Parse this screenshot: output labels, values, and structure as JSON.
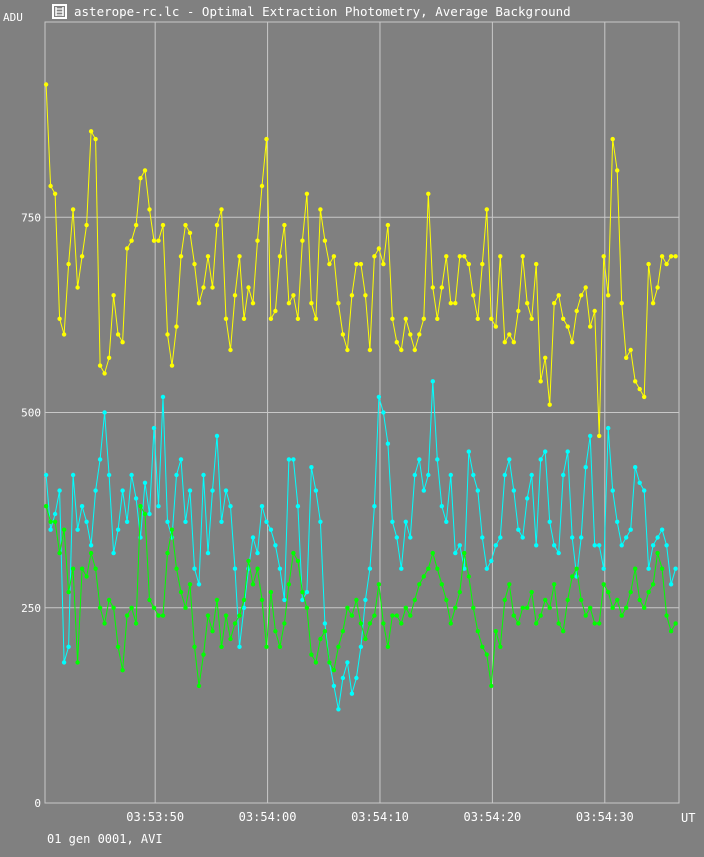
{
  "window": {
    "title": "asterope-rc.lc - Optimal Extraction Photometry, Average Background",
    "icon": "ladder-icon"
  },
  "footer": {
    "status": "01 gen 0001, AVI"
  },
  "colors": {
    "background": "#808080",
    "grid": "#c8c8c8",
    "series_1": "#ffff00",
    "series_2": "#00ffff",
    "series_3": "#00ff00"
  },
  "chart_data": {
    "type": "line",
    "title": "asterope-rc.lc - Optimal Extraction Photometry, Average Background",
    "xlabel": "UT",
    "ylabel": "ADU",
    "xlim": [
      "03:53:40.2",
      "03:54:36.6"
    ],
    "ylim": [
      0,
      1000
    ],
    "yticks": [
      0,
      250,
      500,
      750
    ],
    "ytick_labels": [
      "0",
      "250",
      "500",
      "750"
    ],
    "xticks": [
      "03:53:50",
      "03:54:00",
      "03:54:10",
      "03:54:20",
      "03:54:30"
    ],
    "grid": true,
    "series": [
      {
        "color": "#ffff00",
        "x": [
          "03:53:40.3",
          "03:53:40.7",
          "03:53:41.1",
          "03:53:41.5",
          "03:53:41.9",
          "03:53:42.3",
          "03:53:42.7",
          "03:53:43.1",
          "03:53:43.5",
          "03:53:43.9",
          "03:53:44.3",
          "03:53:44.7",
          "03:53:45.1",
          "03:53:45.5",
          "03:53:45.9",
          "03:53:46.3",
          "03:53:46.7",
          "03:53:47.1",
          "03:53:47.5",
          "03:53:47.9",
          "03:53:48.3",
          "03:53:48.7",
          "03:53:49.1",
          "03:53:49.5",
          "03:53:49.9",
          "03:53:50.3",
          "03:53:50.7",
          "03:53:51.1",
          "03:53:51.5",
          "03:53:51.9",
          "03:53:52.3",
          "03:53:52.7",
          "03:53:53.1",
          "03:53:53.5",
          "03:53:53.9",
          "03:53:54.3",
          "03:53:54.7",
          "03:53:55.1",
          "03:53:55.5",
          "03:53:55.9",
          "03:53:56.3",
          "03:53:56.7",
          "03:53:57.1",
          "03:53:57.5",
          "03:53:57.9",
          "03:53:58.3",
          "03:53:58.7",
          "03:53:59.1",
          "03:53:59.5",
          "03:53:59.9",
          "03:54:00.3",
          "03:54:00.7",
          "03:54:01.1",
          "03:54:01.5",
          "03:54:01.9",
          "03:54:02.3",
          "03:54:02.7",
          "03:54:03.1",
          "03:54:03.5",
          "03:54:03.9",
          "03:54:04.3",
          "03:54:04.7",
          "03:54:05.1",
          "03:54:05.5",
          "03:54:05.9",
          "03:54:06.3",
          "03:54:06.7",
          "03:54:07.1",
          "03:54:07.5",
          "03:54:07.9",
          "03:54:08.3",
          "03:54:08.7",
          "03:54:09.1",
          "03:54:09.5",
          "03:54:09.9",
          "03:54:10.3",
          "03:54:10.7",
          "03:54:11.1",
          "03:54:11.5",
          "03:54:11.9",
          "03:54:12.3",
          "03:54:12.7",
          "03:54:13.1",
          "03:54:13.5",
          "03:54:13.9",
          "03:54:14.3",
          "03:54:14.7",
          "03:54:15.1",
          "03:54:15.5",
          "03:54:15.9",
          "03:54:16.3",
          "03:54:16.7",
          "03:54:17.1",
          "03:54:17.5",
          "03:54:17.9",
          "03:54:18.3",
          "03:54:18.7",
          "03:54:19.1",
          "03:54:19.5",
          "03:54:19.9",
          "03:54:20.3",
          "03:54:20.7",
          "03:54:21.1",
          "03:54:21.5",
          "03:54:21.9",
          "03:54:22.3",
          "03:54:22.7",
          "03:54:23.1",
          "03:54:23.5",
          "03:54:23.9",
          "03:54:24.3",
          "03:54:24.7",
          "03:54:25.1",
          "03:54:25.5",
          "03:54:25.9",
          "03:54:26.3",
          "03:54:26.7",
          "03:54:27.1",
          "03:54:27.5",
          "03:54:27.9",
          "03:54:28.3",
          "03:54:28.7",
          "03:54:29.1",
          "03:54:29.5",
          "03:54:29.9",
          "03:54:30.3",
          "03:54:30.7",
          "03:54:31.1",
          "03:54:31.5",
          "03:54:31.9",
          "03:54:32.3",
          "03:54:32.7",
          "03:54:33.1",
          "03:54:33.5",
          "03:54:33.9",
          "03:54:34.3",
          "03:54:34.7",
          "03:54:35.1",
          "03:54:35.5",
          "03:54:35.9",
          "03:54:36.3"
        ],
        "values": [
          920,
          790,
          780,
          620,
          600,
          690,
          760,
          660,
          700,
          740,
          860,
          850,
          560,
          550,
          570,
          650,
          600,
          590,
          710,
          720,
          740,
          800,
          810,
          760,
          720,
          720,
          740,
          600,
          560,
          610,
          700,
          740,
          730,
          690,
          640,
          660,
          700,
          660,
          740,
          760,
          620,
          580,
          650,
          700,
          620,
          660,
          640,
          720,
          790,
          850,
          620,
          630,
          700,
          740,
          640,
          650,
          620,
          720,
          780,
          640,
          620,
          760,
          720,
          690,
          700,
          640,
          600,
          580,
          650,
          690,
          690,
          650,
          580,
          700,
          710,
          690,
          740,
          620,
          590,
          580,
          620,
          600,
          580,
          600,
          620,
          780,
          660,
          620,
          660,
          700,
          640,
          640,
          700,
          700,
          690,
          650,
          620,
          690,
          760,
          620,
          610,
          700,
          590,
          600,
          590,
          630,
          700,
          640,
          620,
          690,
          540,
          570,
          510,
          640,
          650,
          620,
          610,
          590,
          630,
          650,
          660,
          610,
          630,
          470,
          700,
          650,
          850,
          810,
          640,
          570,
          580,
          540,
          530,
          520,
          690,
          640,
          660,
          700,
          690,
          700,
          700
        ]
      },
      {
        "color": "#00ffff",
        "x": [
          "03:53:40.3",
          "03:53:40.7",
          "03:53:41.1",
          "03:53:41.5",
          "03:53:41.9",
          "03:53:42.3",
          "03:53:42.7",
          "03:53:43.1",
          "03:53:43.5",
          "03:53:43.9",
          "03:53:44.3",
          "03:53:44.7",
          "03:53:45.1",
          "03:53:45.5",
          "03:53:45.9",
          "03:53:46.3",
          "03:53:46.7",
          "03:53:47.1",
          "03:53:47.5",
          "03:53:47.9",
          "03:53:48.3",
          "03:53:48.7",
          "03:53:49.1",
          "03:53:49.5",
          "03:53:49.9",
          "03:53:50.3",
          "03:53:50.7",
          "03:53:51.1",
          "03:53:51.5",
          "03:53:51.9",
          "03:53:52.3",
          "03:53:52.7",
          "03:53:53.1",
          "03:53:53.5",
          "03:53:53.9",
          "03:53:54.3",
          "03:53:54.7",
          "03:53:55.1",
          "03:53:55.5",
          "03:53:55.9",
          "03:53:56.3",
          "03:53:56.7",
          "03:53:57.1",
          "03:53:57.5",
          "03:53:57.9",
          "03:53:58.3",
          "03:53:58.7",
          "03:53:59.1",
          "03:53:59.5",
          "03:53:59.9",
          "03:54:00.3",
          "03:54:00.7",
          "03:54:01.1",
          "03:54:01.5",
          "03:54:01.9",
          "03:54:02.3",
          "03:54:02.7",
          "03:54:03.1",
          "03:54:03.5",
          "03:54:03.9",
          "03:54:04.3",
          "03:54:04.7",
          "03:54:05.1",
          "03:54:05.5",
          "03:54:05.9",
          "03:54:06.3",
          "03:54:06.7",
          "03:54:07.1",
          "03:54:07.5",
          "03:54:07.9",
          "03:54:08.3",
          "03:54:08.7",
          "03:54:09.1",
          "03:54:09.5",
          "03:54:09.9",
          "03:54:10.3",
          "03:54:10.7",
          "03:54:11.1",
          "03:54:11.5",
          "03:54:11.9",
          "03:54:12.3",
          "03:54:12.7",
          "03:54:13.1",
          "03:54:13.5",
          "03:54:13.9",
          "03:54:14.3",
          "03:54:14.7",
          "03:54:15.1",
          "03:54:15.5",
          "03:54:15.9",
          "03:54:16.3",
          "03:54:16.7",
          "03:54:17.1",
          "03:54:17.5",
          "03:54:17.9",
          "03:54:18.3",
          "03:54:18.7",
          "03:54:19.1",
          "03:54:19.5",
          "03:54:19.9",
          "03:54:20.3",
          "03:54:20.7",
          "03:54:21.1",
          "03:54:21.5",
          "03:54:21.9",
          "03:54:22.3",
          "03:54:22.7",
          "03:54:23.1",
          "03:54:23.5",
          "03:54:23.9",
          "03:54:24.3",
          "03:54:24.7",
          "03:54:25.1",
          "03:54:25.5",
          "03:54:25.9",
          "03:54:26.3",
          "03:54:26.7",
          "03:54:27.1",
          "03:54:27.5",
          "03:54:27.9",
          "03:54:28.3",
          "03:54:28.7",
          "03:54:29.1",
          "03:54:29.5",
          "03:54:29.9",
          "03:54:30.3",
          "03:54:30.7",
          "03:54:31.1",
          "03:54:31.5",
          "03:54:31.9",
          "03:54:32.3",
          "03:54:32.7",
          "03:54:33.1",
          "03:54:33.5",
          "03:54:33.9",
          "03:54:34.3",
          "03:54:34.7",
          "03:54:35.1",
          "03:54:35.5",
          "03:54:35.9",
          "03:54:36.3"
        ],
        "values": [
          420,
          350,
          370,
          400,
          180,
          200,
          420,
          350,
          380,
          360,
          330,
          400,
          440,
          500,
          420,
          320,
          350,
          400,
          360,
          420,
          390,
          340,
          410,
          370,
          480,
          380,
          520,
          360,
          340,
          420,
          440,
          360,
          400,
          300,
          280,
          420,
          320,
          400,
          470,
          360,
          400,
          380,
          300,
          200,
          250,
          300,
          340,
          320,
          380,
          360,
          350,
          330,
          300,
          260,
          440,
          440,
          380,
          260,
          270,
          430,
          400,
          360,
          230,
          180,
          150,
          120,
          160,
          180,
          140,
          160,
          200,
          260,
          300,
          380,
          520,
          500,
          460,
          360,
          340,
          300,
          360,
          340,
          420,
          440,
          400,
          420,
          540,
          440,
          380,
          360,
          420,
          320,
          330,
          300,
          450,
          420,
          400,
          340,
          300,
          310,
          330,
          340,
          420,
          440,
          400,
          350,
          340,
          390,
          420,
          330,
          440,
          450,
          360,
          330,
          320,
          420,
          450,
          340,
          290,
          340,
          430,
          470,
          330,
          330,
          300,
          480,
          400,
          360,
          330,
          340,
          350,
          430,
          410,
          400,
          300,
          330,
          340,
          350,
          330,
          280,
          300
        ]
      },
      {
        "color": "#00ff00",
        "x": [
          "03:53:40.3",
          "03:53:40.7",
          "03:53:41.1",
          "03:53:41.5",
          "03:53:41.9",
          "03:53:42.3",
          "03:53:42.7",
          "03:53:43.1",
          "03:53:43.5",
          "03:53:43.9",
          "03:53:44.3",
          "03:53:44.7",
          "03:53:45.1",
          "03:53:45.5",
          "03:53:45.9",
          "03:53:46.3",
          "03:53:46.7",
          "03:53:47.1",
          "03:53:47.5",
          "03:53:47.9",
          "03:53:48.3",
          "03:53:48.7",
          "03:53:49.1",
          "03:53:49.5",
          "03:53:49.9",
          "03:53:50.3",
          "03:53:50.7",
          "03:53:51.1",
          "03:53:51.5",
          "03:53:51.9",
          "03:53:52.3",
          "03:53:52.7",
          "03:53:53.1",
          "03:53:53.5",
          "03:53:53.9",
          "03:53:54.3",
          "03:53:54.7",
          "03:53:55.1",
          "03:53:55.5",
          "03:53:55.9",
          "03:53:56.3",
          "03:53:56.7",
          "03:53:57.1",
          "03:53:57.5",
          "03:53:57.9",
          "03:53:58.3",
          "03:53:58.7",
          "03:53:59.1",
          "03:53:59.5",
          "03:53:59.9",
          "03:54:00.3",
          "03:54:00.7",
          "03:54:01.1",
          "03:54:01.5",
          "03:54:01.9",
          "03:54:02.3",
          "03:54:02.7",
          "03:54:03.1",
          "03:54:03.5",
          "03:54:03.9",
          "03:54:04.3",
          "03:54:04.7",
          "03:54:05.1",
          "03:54:05.5",
          "03:54:05.9",
          "03:54:06.3",
          "03:54:06.7",
          "03:54:07.1",
          "03:54:07.5",
          "03:54:07.9",
          "03:54:08.3",
          "03:54:08.7",
          "03:54:09.1",
          "03:54:09.5",
          "03:54:09.9",
          "03:54:10.3",
          "03:54:10.7",
          "03:54:11.1",
          "03:54:11.5",
          "03:54:11.9",
          "03:54:12.3",
          "03:54:12.7",
          "03:54:13.1",
          "03:54:13.5",
          "03:54:13.9",
          "03:54:14.3",
          "03:54:14.7",
          "03:54:15.1",
          "03:54:15.5",
          "03:54:15.9",
          "03:54:16.3",
          "03:54:16.7",
          "03:54:17.1",
          "03:54:17.5",
          "03:54:17.9",
          "03:54:18.3",
          "03:54:18.7",
          "03:54:19.1",
          "03:54:19.5",
          "03:54:19.9",
          "03:54:20.3",
          "03:54:20.7",
          "03:54:21.1",
          "03:54:21.5",
          "03:54:21.9",
          "03:54:22.3",
          "03:54:22.7",
          "03:54:23.1",
          "03:54:23.5",
          "03:54:23.9",
          "03:54:24.3",
          "03:54:24.7",
          "03:54:25.1",
          "03:54:25.5",
          "03:54:25.9",
          "03:54:26.3",
          "03:54:26.7",
          "03:54:27.1",
          "03:54:27.5",
          "03:54:27.9",
          "03:54:28.3",
          "03:54:28.7",
          "03:54:29.1",
          "03:54:29.5",
          "03:54:29.9",
          "03:54:30.3",
          "03:54:30.7",
          "03:54:31.1",
          "03:54:31.5",
          "03:54:31.9",
          "03:54:32.3",
          "03:54:32.7",
          "03:54:33.1",
          "03:54:33.5",
          "03:54:33.9",
          "03:54:34.3",
          "03:54:34.7",
          "03:54:35.1",
          "03:54:35.5",
          "03:54:35.9",
          "03:54:36.3"
        ],
        "values": [
          380,
          360,
          360,
          320,
          350,
          270,
          300,
          180,
          300,
          290,
          320,
          300,
          250,
          230,
          260,
          250,
          200,
          170,
          240,
          250,
          230,
          380,
          370,
          260,
          250,
          240,
          240,
          320,
          350,
          300,
          270,
          250,
          280,
          200,
          150,
          190,
          240,
          220,
          260,
          200,
          240,
          210,
          230,
          240,
          260,
          310,
          280,
          300,
          260,
          200,
          270,
          220,
          200,
          230,
          280,
          320,
          310,
          270,
          250,
          190,
          180,
          210,
          220,
          180,
          170,
          200,
          220,
          250,
          240,
          260,
          230,
          210,
          230,
          240,
          280,
          230,
          200,
          240,
          240,
          230,
          250,
          240,
          260,
          280,
          290,
          300,
          320,
          300,
          280,
          260,
          230,
          250,
          270,
          320,
          290,
          250,
          220,
          200,
          190,
          150,
          220,
          200,
          260,
          280,
          240,
          230,
          250,
          250,
          270,
          230,
          240,
          260,
          250,
          280,
          230,
          220,
          260,
          290,
          300,
          260,
          240,
          250,
          230,
          230,
          280,
          270,
          250,
          260,
          240,
          250,
          270,
          300,
          260,
          250,
          270,
          280,
          320,
          300,
          240,
          220,
          230
        ]
      }
    ]
  }
}
